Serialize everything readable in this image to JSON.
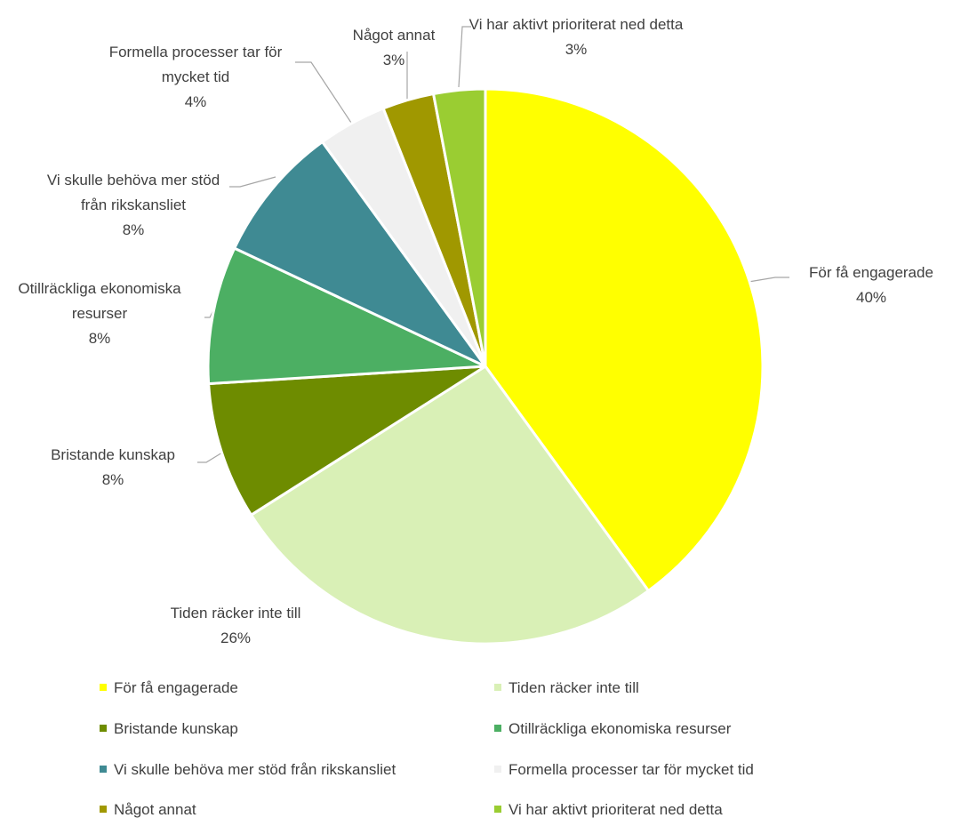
{
  "chart_data": {
    "type": "pie",
    "categories": [
      "För få engagerade",
      "Tiden räcker inte till",
      "Bristande kunskap",
      "Otillräckliga ekonomiska resurser",
      "Vi skulle behöva mer stöd från rikskansliet",
      "Formella processer tar för mycket tid",
      "Något annat",
      "Vi har aktivt prioriterat ned detta"
    ],
    "values": [
      40,
      26,
      8,
      8,
      8,
      4,
      3,
      3
    ],
    "value_labels": [
      "40%",
      "26%",
      "8%",
      "8%",
      "8%",
      "4%",
      "3%",
      "3%"
    ],
    "colors": [
      "#ffff00",
      "#d9f0b6",
      "#6e8c00",
      "#4caf63",
      "#3f8a93",
      "#f0f0f0",
      "#a09800",
      "#9acd32"
    ],
    "legend": "bottom"
  }
}
